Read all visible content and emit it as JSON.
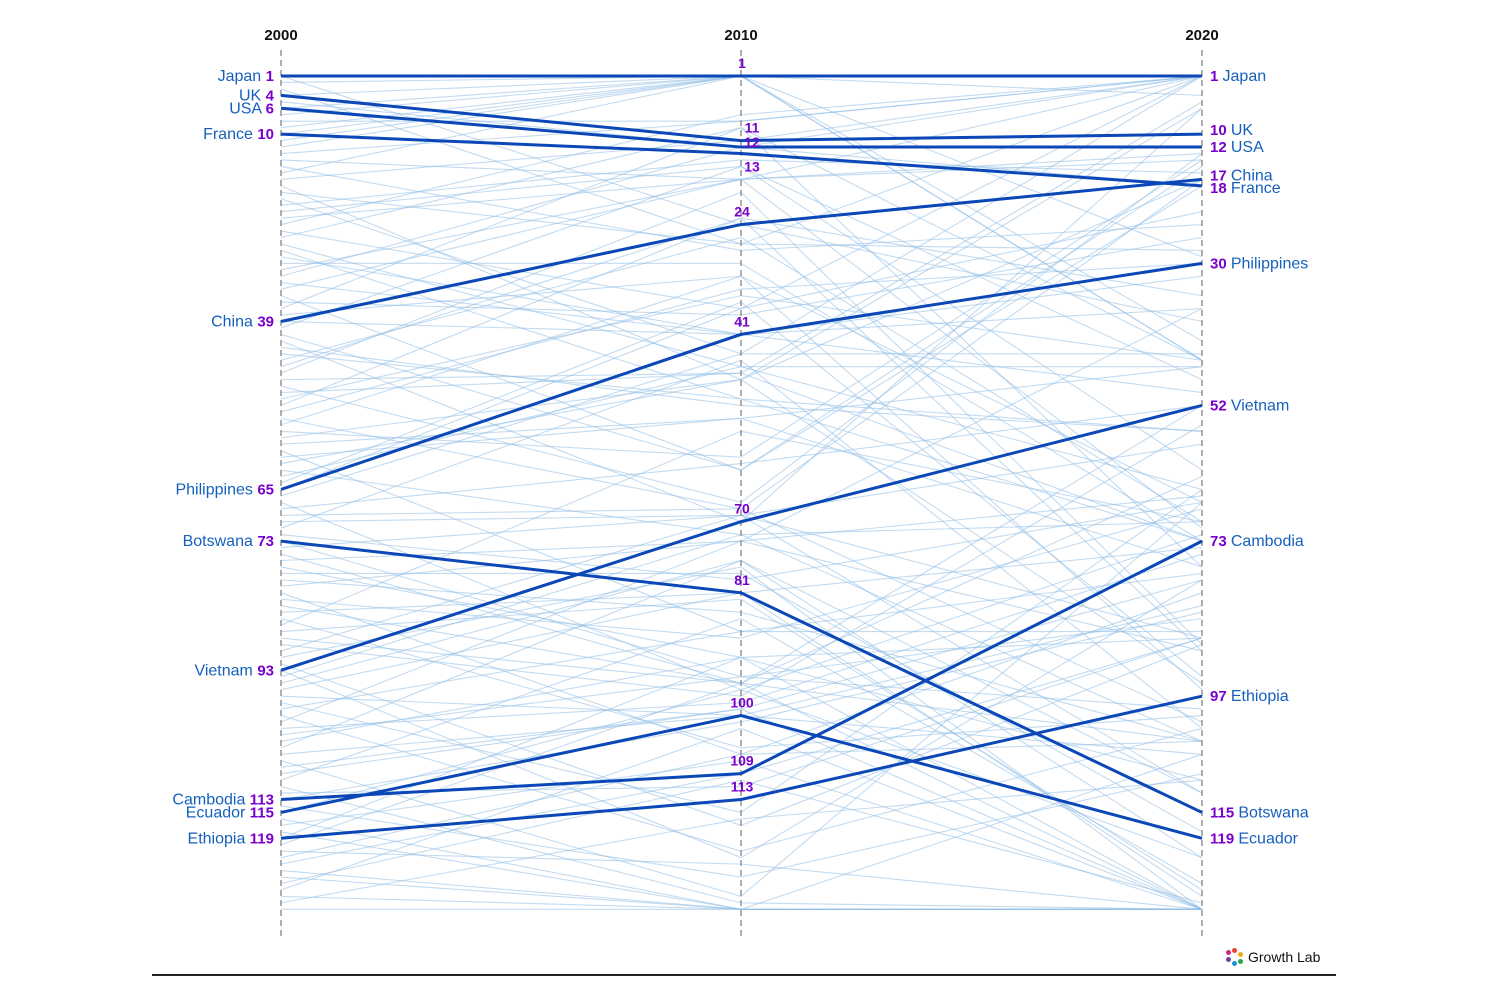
{
  "chart_data": {
    "type": "line",
    "subtype": "slope (rank bump chart)",
    "x": [
      "2000",
      "2010",
      "2020"
    ],
    "rank_scale": [
      1,
      136
    ],
    "axis_style": "dashed vertical gridlines at each year, rank 1 at top",
    "colors": {
      "highlight": "#0b47b6",
      "background_lines": "#8fbde6",
      "rank_text": "#7a00cc",
      "country_text": "#1560bd"
    },
    "series": [
      {
        "name": "Japan",
        "values": [
          1,
          1,
          1
        ]
      },
      {
        "name": "UK",
        "values": [
          4,
          11,
          10
        ]
      },
      {
        "name": "USA",
        "values": [
          6,
          12,
          12
        ]
      },
      {
        "name": "France",
        "values": [
          10,
          13,
          18
        ]
      },
      {
        "name": "China",
        "values": [
          39,
          24,
          17
        ]
      },
      {
        "name": "Philippines",
        "values": [
          65,
          41,
          30
        ]
      },
      {
        "name": "Botswana",
        "values": [
          73,
          81,
          115
        ]
      },
      {
        "name": "Vietnam",
        "values": [
          93,
          70,
          52
        ]
      },
      {
        "name": "Cambodia",
        "values": [
          113,
          109,
          73
        ]
      },
      {
        "name": "Ecuador",
        "values": [
          115,
          100,
          119
        ]
      },
      {
        "name": "Ethiopia",
        "values": [
          119,
          113,
          97
        ]
      }
    ],
    "left_labels": [
      {
        "country": "Japan",
        "rank": "1"
      },
      {
        "country": "UK",
        "rank": "4"
      },
      {
        "country": "USA",
        "rank": "6"
      },
      {
        "country": "France",
        "rank": "10"
      },
      {
        "country": "China",
        "rank": "39"
      },
      {
        "country": "Philippines",
        "rank": "65"
      },
      {
        "country": "Botswana",
        "rank": "73"
      },
      {
        "country": "Vietnam",
        "rank": "93"
      },
      {
        "country": "Cambodia",
        "rank": "113"
      },
      {
        "country": "Ecuador",
        "rank": "115"
      },
      {
        "country": "Ethiopia",
        "rank": "119"
      }
    ],
    "mid_labels": [
      "1",
      "11",
      "12",
      "13",
      "24",
      "41",
      "70",
      "81",
      "100",
      "109",
      "113"
    ],
    "right_labels": [
      {
        "country": "Japan",
        "rank": "1"
      },
      {
        "country": "UK",
        "rank": "10"
      },
      {
        "country": "USA",
        "rank": "12"
      },
      {
        "country": "China",
        "rank": "17"
      },
      {
        "country": "France",
        "rank": "18"
      },
      {
        "country": "Philippines",
        "rank": "30"
      },
      {
        "country": "Vietnam",
        "rank": "52"
      },
      {
        "country": "Cambodia",
        "rank": "73"
      },
      {
        "country": "Ethiopia",
        "rank": "97"
      },
      {
        "country": "Botswana",
        "rank": "115"
      },
      {
        "country": "Ecuador",
        "rank": "119"
      }
    ]
  },
  "footer": {
    "brand_text": "Growth Lab"
  }
}
